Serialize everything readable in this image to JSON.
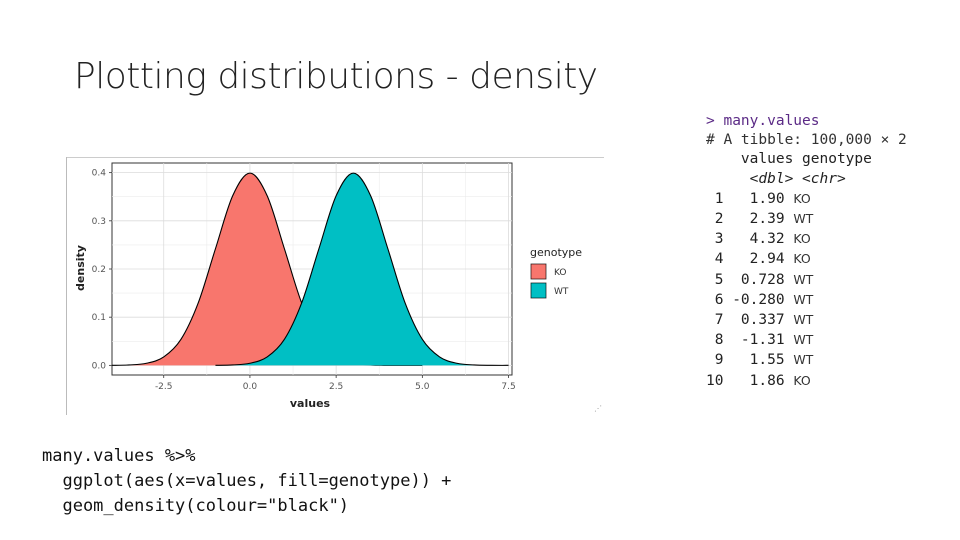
{
  "slide": {
    "title": "Plotting distributions - density"
  },
  "console": {
    "command": "> many.values",
    "header": "# A tibble: 100,000 × 2",
    "columns": [
      "values",
      "genotype"
    ],
    "types": [
      "<dbl>",
      "<chr>"
    ],
    "rows": [
      {
        "index": "1",
        "value": "1.90",
        "genotype": "KO"
      },
      {
        "index": "2",
        "value": "2.39",
        "genotype": "WT"
      },
      {
        "index": "3",
        "value": "4.32",
        "genotype": "KO"
      },
      {
        "index": "4",
        "value": "2.94",
        "genotype": "KO"
      },
      {
        "index": "5",
        "value": "0.728",
        "genotype": "WT"
      },
      {
        "index": "6",
        "value": "-0.280",
        "genotype": "WT"
      },
      {
        "index": "7",
        "value": "0.337",
        "genotype": "WT"
      },
      {
        "index": "8",
        "value": "-1.31",
        "genotype": "WT"
      },
      {
        "index": "9",
        "value": "1.55",
        "genotype": "WT"
      },
      {
        "index": "10",
        "value": "1.86",
        "genotype": "KO"
      }
    ]
  },
  "code": {
    "lines": [
      "many.values %>%",
      "  ggplot(aes(x=values, fill=genotype)) +",
      "  geom_density(colour=\"black\")"
    ]
  },
  "chart_data": {
    "type": "area",
    "title": "",
    "xlabel": "values",
    "ylabel": "density",
    "xlim": [
      -4.0,
      7.6
    ],
    "ylim": [
      -0.02,
      0.42
    ],
    "x_ticks": [
      -2.5,
      0.0,
      2.5,
      5.0,
      7.5
    ],
    "x_tick_labels": [
      "-2.5",
      "0.0",
      "2.5",
      "5.0",
      "7.5"
    ],
    "y_ticks": [
      0.0,
      0.1,
      0.2,
      0.3,
      0.4
    ],
    "y_tick_labels": [
      "0.0",
      "0.1",
      "0.2",
      "0.3",
      "0.4"
    ],
    "grid": true,
    "legend": {
      "title": "genotype",
      "placement": "right"
    },
    "series": [
      {
        "name": "KO",
        "color": "#F8766D",
        "x": [
          -4.0,
          -3.5,
          -3.0,
          -2.5,
          -2.0,
          -1.5,
          -1.0,
          -0.5,
          0.0,
          0.5,
          1.0,
          1.5,
          2.0,
          2.5,
          3.0,
          3.5,
          4.0,
          4.5,
          5.0
        ],
        "y": [
          0.0001,
          0.0009,
          0.0044,
          0.0175,
          0.054,
          0.1295,
          0.242,
          0.352,
          0.399,
          0.352,
          0.242,
          0.1295,
          0.054,
          0.0175,
          0.0044,
          0.0009,
          0.0001,
          0.0,
          0.0
        ]
      },
      {
        "name": "WT",
        "color": "#00BFC4",
        "x": [
          -1.0,
          -0.5,
          0.0,
          0.5,
          1.0,
          1.5,
          2.0,
          2.5,
          3.0,
          3.5,
          4.0,
          4.5,
          5.0,
          5.5,
          6.0,
          6.5,
          7.0,
          7.5
        ],
        "y": [
          0.0001,
          0.0009,
          0.0044,
          0.0175,
          0.054,
          0.1295,
          0.242,
          0.352,
          0.399,
          0.352,
          0.242,
          0.1295,
          0.054,
          0.0175,
          0.0044,
          0.0009,
          0.0001,
          0.0
        ]
      }
    ]
  }
}
